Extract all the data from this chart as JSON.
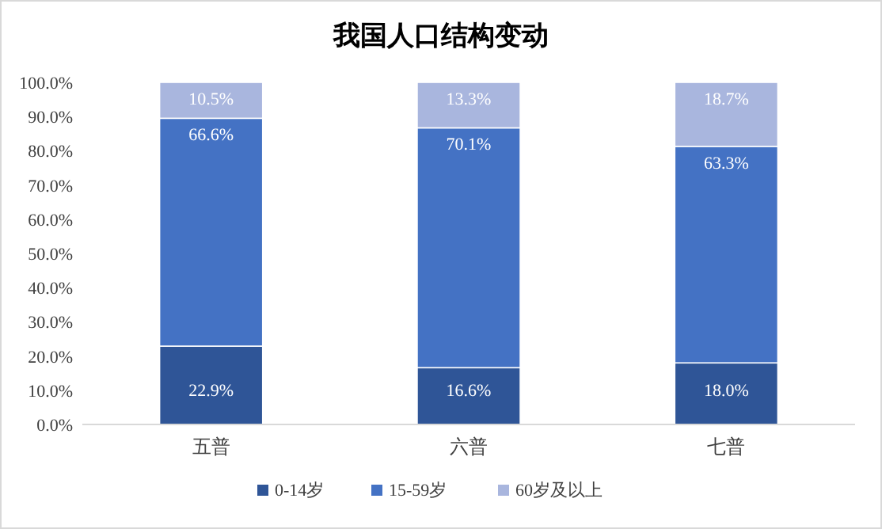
{
  "chart_data": {
    "type": "bar",
    "stacked": true,
    "title": "我国人口结构变动",
    "categories": [
      "五普",
      "六普",
      "七普"
    ],
    "series": [
      {
        "name": "0-14岁",
        "color": "#2f5597",
        "values": [
          22.9,
          16.6,
          18.0
        ],
        "value_labels": [
          "22.9%",
          "16.6%",
          "18.0%"
        ]
      },
      {
        "name": "15-59岁",
        "color": "#4472c4",
        "values": [
          66.6,
          70.1,
          63.3
        ],
        "value_labels": [
          "66.6%",
          "70.1%",
          "63.3%"
        ]
      },
      {
        "name": "60岁及以上",
        "color": "#a9b6de",
        "values": [
          10.5,
          13.3,
          18.7
        ],
        "value_labels": [
          "10.5%",
          "13.3%",
          "18.7%"
        ]
      }
    ],
    "ylim": [
      0,
      100
    ],
    "yticks": [
      {
        "value": 0,
        "label": "0.0%"
      },
      {
        "value": 10,
        "label": "10.0%"
      },
      {
        "value": 20,
        "label": "20.0%"
      },
      {
        "value": 30,
        "label": "30.0%"
      },
      {
        "value": 40,
        "label": "40.0%"
      },
      {
        "value": 50,
        "label": "50.0%"
      },
      {
        "value": 60,
        "label": "60.0%"
      },
      {
        "value": 70,
        "label": "70.0%"
      },
      {
        "value": 80,
        "label": "80.0%"
      },
      {
        "value": 90,
        "label": "90.0%"
      },
      {
        "value": 100,
        "label": "100.0%"
      }
    ],
    "legend": "bottom"
  }
}
